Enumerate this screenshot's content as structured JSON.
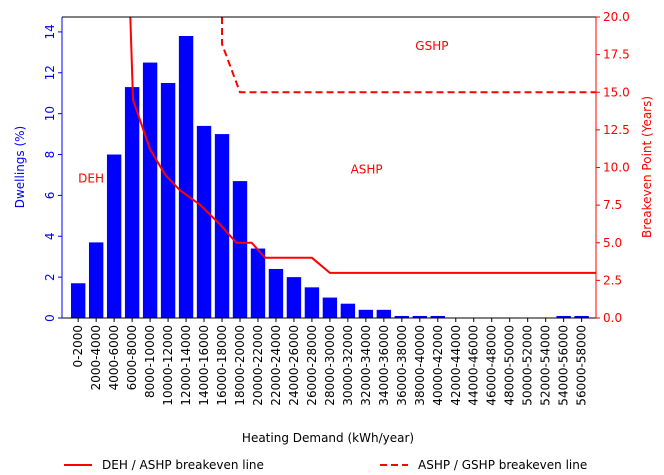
{
  "chart_data": {
    "type": "bar",
    "categories": [
      "0-2000",
      "2000-4000",
      "4000-6000",
      "6000-8000",
      "8000-10000",
      "10000-12000",
      "12000-14000",
      "14000-16000",
      "16000-18000",
      "18000-20000",
      "20000-22000",
      "22000-24000",
      "24000-26000",
      "26000-28000",
      "28000-30000",
      "30000-32000",
      "32000-34000",
      "34000-36000",
      "36000-38000",
      "38000-40000",
      "40000-42000",
      "42000-44000",
      "44000-46000",
      "46000-48000",
      "48000-50000",
      "50000-52000",
      "52000-54000",
      "54000-56000",
      "56000-58000"
    ],
    "values": [
      1.7,
      3.7,
      8.0,
      11.3,
      12.5,
      11.5,
      13.8,
      9.4,
      9.0,
      6.7,
      3.4,
      2.4,
      2.0,
      1.5,
      1.0,
      0.7,
      0.4,
      0.4,
      0.1,
      0.1,
      0.1,
      0,
      0,
      0,
      0,
      0,
      0,
      0.1,
      0.1
    ],
    "color": "#0000ff",
    "xlabel": "Heating Demand (kWh/year)",
    "ylabel": "Dwellings (%)",
    "y2label": "Breakeven Point (Years)",
    "xlim": [
      -800,
      58600
    ],
    "ylim": [
      0,
      14.73
    ],
    "yticks": [
      0,
      2,
      4,
      6,
      8,
      10,
      12,
      14
    ],
    "y2lim": [
      0,
      20
    ],
    "y2ticks": [
      {
        "value": 0,
        "label": "0.0"
      },
      {
        "value": 2.5,
        "label": "2.5"
      },
      {
        "value": 5,
        "label": "5.0"
      },
      {
        "value": 7.5,
        "label": "7.5"
      },
      {
        "value": 10,
        "label": "10.0"
      },
      {
        "value": 12.5,
        "label": "12.5"
      },
      {
        "value": 15,
        "label": "15.0"
      },
      {
        "value": 17.5,
        "label": "17.5"
      },
      {
        "value": 20,
        "label": "20.0"
      }
    ],
    "series": [
      {
        "name": "DEH / ASHP breakeven line",
        "color": "#ff0000",
        "axis": "y2",
        "dashed": false,
        "x": [
          6800,
          7100,
          9000,
          10700,
          12300,
          14600,
          16800,
          18600,
          20300,
          21800,
          27000,
          29000,
          58600
        ],
        "values": [
          20,
          14.5,
          11.2,
          9.5,
          8.5,
          7.5,
          6.2,
          5.0,
          5.0,
          4.0,
          4.0,
          3.0,
          3.0
        ]
      },
      {
        "name": "ASHP / GSHP breakeven line",
        "color": "#ff0000",
        "axis": "y2",
        "dashed": true,
        "x": [
          17000,
          17000,
          19000,
          58600
        ],
        "values": [
          20,
          18.2,
          15,
          15
        ]
      }
    ],
    "annotations": [
      {
        "text": "DEH",
        "x": 1000,
        "y": 9.0
      },
      {
        "text": "ASHP",
        "x": 31300,
        "y": 9.6
      },
      {
        "text": "GSHP",
        "x": 38500,
        "y": 17.8
      }
    ]
  }
}
